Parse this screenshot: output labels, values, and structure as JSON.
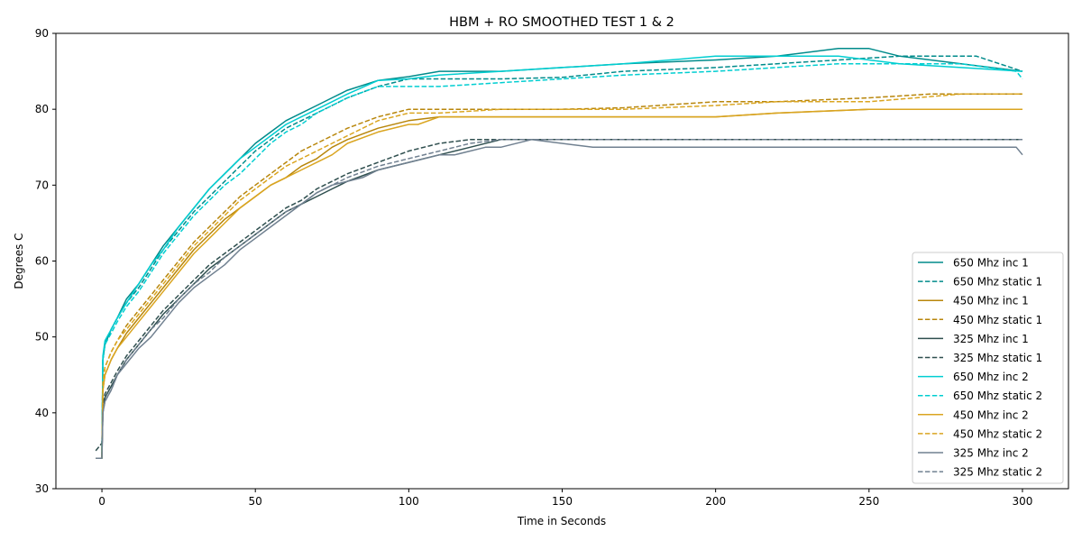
{
  "chart_data": {
    "type": "line",
    "title": "HBM + RO SMOOTHED TEST 1 & 2",
    "xlabel": "Time in Seconds",
    "ylabel": "Degrees C",
    "xlim": [
      -15,
      315
    ],
    "ylim": [
      30,
      90
    ],
    "xticks": [
      0,
      50,
      100,
      150,
      200,
      250,
      300
    ],
    "yticks": [
      30,
      40,
      50,
      60,
      70,
      80,
      90
    ],
    "grid": false,
    "legend_position": "lower-right",
    "series": [
      {
        "name": "650 Mhz inc 1",
        "color": "#008b8b",
        "style": "solid",
        "x": [
          -2,
          0,
          0.3,
          1,
          3,
          5,
          8,
          12,
          16,
          20,
          25,
          30,
          35,
          40,
          45,
          50,
          55,
          60,
          65,
          70,
          75,
          80,
          90,
          100,
          110,
          130,
          150,
          170,
          200,
          220,
          240,
          250,
          260,
          280,
          300
        ],
        "y": [
          34,
          34,
          47,
          49,
          51,
          52.5,
          55,
          57,
          59.5,
          62,
          64.5,
          67,
          69.5,
          71.5,
          73.5,
          75.5,
          77,
          78.5,
          79.5,
          80.5,
          81.5,
          82.5,
          83.8,
          84.3,
          85,
          85,
          85.5,
          86,
          86.5,
          87,
          88,
          88,
          87,
          86,
          85
        ]
      },
      {
        "name": "650 Mhz static 1",
        "color": "#008b8b",
        "style": "dashed",
        "x": [
          -2,
          0,
          0.3,
          1,
          3,
          5,
          8,
          12,
          16,
          20,
          25,
          30,
          35,
          40,
          45,
          50,
          55,
          60,
          65,
          70,
          75,
          80,
          90,
          100,
          110,
          130,
          150,
          170,
          200,
          220,
          240,
          260,
          270,
          285,
          300
        ],
        "y": [
          34,
          34,
          47,
          49,
          51,
          52.5,
          54.5,
          56.5,
          59,
          61.5,
          64,
          66.5,
          68.5,
          70.5,
          72.5,
          74.5,
          76,
          77.5,
          78.5,
          79.5,
          80.5,
          81.5,
          83,
          84,
          84,
          84,
          84.2,
          85,
          85.5,
          86,
          86.5,
          87,
          87,
          87,
          85
        ]
      },
      {
        "name": "450 Mhz inc 1",
        "color": "#b8860b",
        "style": "solid",
        "x": [
          -2,
          0,
          0.3,
          1,
          3,
          5,
          8,
          12,
          16,
          20,
          25,
          30,
          35,
          40,
          45,
          50,
          55,
          60,
          65,
          70,
          75,
          80,
          90,
          100,
          110,
          130,
          150,
          170,
          200,
          220,
          250,
          275,
          300
        ],
        "y": [
          34,
          34,
          43,
          45,
          47,
          48.5,
          50.5,
          52.5,
          54.5,
          56.5,
          59,
          61.5,
          63.5,
          65.5,
          67,
          68.5,
          70,
          71,
          72.5,
          73.5,
          75,
          76,
          77.5,
          78.5,
          79,
          79,
          79,
          79,
          79,
          79.5,
          80,
          80,
          80
        ]
      },
      {
        "name": "450 Mhz static 1",
        "color": "#b8860b",
        "style": "dashed",
        "x": [
          -2,
          0,
          0.3,
          1,
          3,
          5,
          8,
          12,
          16,
          20,
          25,
          30,
          35,
          40,
          45,
          50,
          55,
          60,
          65,
          70,
          75,
          80,
          90,
          100,
          110,
          130,
          150,
          170,
          200,
          220,
          250,
          270,
          300
        ],
        "y": [
          34,
          34,
          44,
          46,
          48,
          49.5,
          51.5,
          53.5,
          55.5,
          57.5,
          60,
          62.5,
          64.5,
          66.5,
          68.5,
          70,
          71.5,
          73,
          74.5,
          75.5,
          76.5,
          77.5,
          79,
          80,
          80,
          80,
          80,
          80.2,
          81,
          81,
          81.5,
          82,
          82
        ]
      },
      {
        "name": "325 Mhz inc 1",
        "color": "#2f4f4f",
        "style": "solid",
        "x": [
          -2,
          0,
          0.3,
          1,
          3,
          5,
          8,
          12,
          16,
          20,
          25,
          30,
          35,
          40,
          45,
          50,
          55,
          60,
          65,
          70,
          75,
          80,
          90,
          100,
          110,
          120,
          130,
          150,
          200,
          250,
          300
        ],
        "y": [
          34,
          34,
          40,
          42,
          43.5,
          45,
          47,
          49,
          51,
          53,
          55,
          57,
          59,
          60.5,
          62,
          63.5,
          65,
          66.5,
          67.5,
          68.5,
          69.5,
          70.5,
          72,
          73,
          74,
          75,
          76,
          76,
          76,
          76,
          76
        ]
      },
      {
        "name": "325 Mhz static 1",
        "color": "#2f4f4f",
        "style": "dashed",
        "x": [
          -2,
          0,
          0.3,
          1,
          3,
          5,
          8,
          12,
          16,
          20,
          25,
          30,
          35,
          40,
          45,
          50,
          55,
          60,
          65,
          70,
          75,
          80,
          90,
          100,
          110,
          120,
          130,
          150,
          200,
          250,
          300
        ],
        "y": [
          35,
          36,
          41,
          42.5,
          44,
          45.5,
          47.5,
          49.5,
          51.5,
          53.5,
          55.5,
          57.5,
          59.5,
          61,
          62.5,
          64,
          65.5,
          67,
          68,
          69.5,
          70.5,
          71.5,
          73,
          74.5,
          75.5,
          76,
          76,
          76,
          76,
          76,
          76
        ]
      },
      {
        "name": "650 Mhz inc 2",
        "color": "#00ced1",
        "style": "solid",
        "x": [
          -2,
          0,
          0.3,
          1,
          3,
          5,
          8,
          12,
          16,
          20,
          25,
          30,
          35,
          40,
          45,
          50,
          55,
          60,
          65,
          70,
          75,
          80,
          90,
          100,
          110,
          130,
          150,
          170,
          200,
          220,
          240,
          260,
          280,
          300
        ],
        "y": [
          34,
          34,
          47.5,
          49.5,
          51,
          52.5,
          54.5,
          57,
          59.5,
          61.5,
          64.5,
          67,
          69.5,
          71.5,
          73.5,
          75,
          76.5,
          78,
          79,
          80,
          81,
          82,
          83.8,
          84,
          84.5,
          85,
          85.5,
          86,
          87,
          87,
          87,
          86,
          85.5,
          85
        ]
      },
      {
        "name": "650 Mhz static 2",
        "color": "#00ced1",
        "style": "dashed",
        "x": [
          -2,
          0,
          0.3,
          1,
          3,
          5,
          8,
          12,
          16,
          20,
          25,
          30,
          35,
          40,
          45,
          50,
          55,
          60,
          65,
          70,
          75,
          80,
          90,
          100,
          110,
          130,
          150,
          170,
          200,
          220,
          240,
          260,
          280,
          298,
          300
        ],
        "y": [
          34,
          34,
          47,
          49,
          50.5,
          52,
          54,
          56,
          58.5,
          61,
          63.5,
          66,
          68,
          70,
          71.5,
          73.5,
          75.5,
          77,
          78,
          79.5,
          80.5,
          81.5,
          83,
          83,
          83,
          83.5,
          84,
          84.5,
          85,
          85.5,
          86,
          86,
          86,
          85,
          84
        ]
      },
      {
        "name": "450 Mhz inc 2",
        "color": "#daa520",
        "style": "solid",
        "x": [
          -2,
          0,
          0.3,
          1,
          3,
          5,
          8,
          12,
          16,
          20,
          25,
          30,
          35,
          40,
          45,
          50,
          55,
          60,
          65,
          70,
          75,
          80,
          90,
          100,
          103,
          110,
          130,
          150,
          170,
          200,
          220,
          250,
          275,
          300
        ],
        "y": [
          34,
          34,
          43,
          45,
          47,
          48.5,
          50,
          52,
          54,
          56,
          58.5,
          61,
          63,
          65,
          67,
          68.5,
          70,
          71,
          72,
          73,
          74,
          75.5,
          77,
          78,
          78,
          79,
          79,
          79,
          79,
          79,
          79.5,
          80,
          80,
          80
        ]
      },
      {
        "name": "450 Mhz static 2",
        "color": "#daa520",
        "style": "dashed",
        "x": [
          -2,
          0,
          0.3,
          1,
          3,
          5,
          8,
          12,
          16,
          20,
          25,
          30,
          35,
          40,
          45,
          50,
          55,
          60,
          65,
          70,
          75,
          80,
          90,
          100,
          110,
          130,
          150,
          170,
          200,
          220,
          250,
          280,
          300
        ],
        "y": [
          34,
          34,
          44,
          46,
          48,
          49.5,
          51,
          53,
          55,
          57,
          59.5,
          62,
          64,
          66,
          68,
          69.5,
          71,
          72.5,
          73.5,
          74.5,
          75.5,
          76.5,
          78.5,
          79.5,
          79.5,
          80,
          80,
          80,
          80.5,
          81,
          81,
          82,
          82
        ]
      },
      {
        "name": "325 Mhz inc 2",
        "color": "#708090",
        "style": "solid",
        "x": [
          -2,
          0,
          0.3,
          1,
          3,
          5,
          8,
          12,
          16,
          20,
          25,
          30,
          35,
          40,
          45,
          50,
          55,
          60,
          65,
          70,
          75,
          80,
          85,
          90,
          100,
          110,
          115,
          125,
          130,
          140,
          160,
          200,
          250,
          298,
          300
        ],
        "y": [
          34,
          34,
          40,
          41.5,
          43,
          45,
          46.5,
          48.5,
          50,
          52,
          54.5,
          56.5,
          58,
          59.5,
          61.5,
          63,
          64.5,
          66,
          67.5,
          69,
          70,
          70.5,
          71,
          72,
          73,
          74,
          74,
          75,
          75,
          76,
          75,
          75,
          75,
          75,
          74
        ]
      },
      {
        "name": "325 Mhz static 2",
        "color": "#708090",
        "style": "dashed",
        "x": [
          -2,
          0,
          0.3,
          1,
          3,
          5,
          8,
          12,
          16,
          20,
          25,
          30,
          35,
          40,
          45,
          50,
          55,
          60,
          65,
          70,
          75,
          80,
          90,
          100,
          110,
          120,
          130,
          150,
          200,
          250,
          300
        ],
        "y": [
          34,
          34,
          40,
          41.5,
          43,
          45,
          47,
          49,
          51,
          52.5,
          55,
          57,
          58.5,
          60.5,
          62,
          63.5,
          65,
          66.5,
          67.5,
          69,
          70,
          71,
          72.5,
          73.5,
          74.5,
          75.5,
          76,
          76,
          76,
          76,
          76
        ]
      }
    ]
  }
}
